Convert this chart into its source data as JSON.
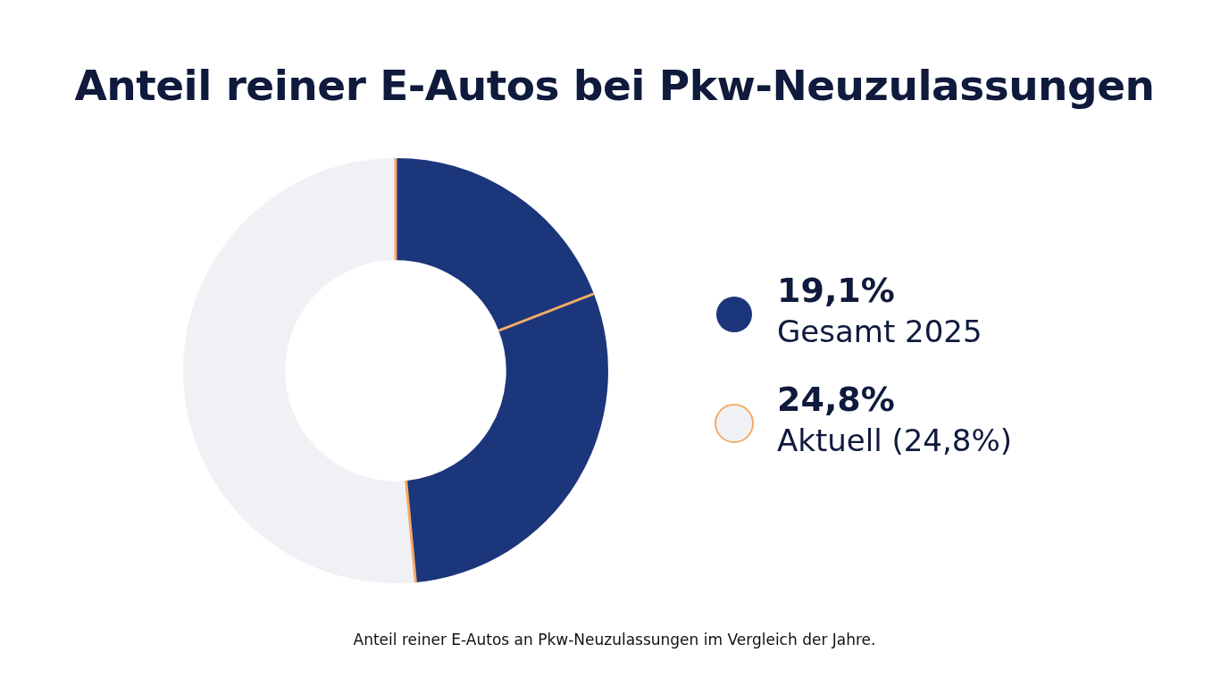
{
  "chart_data": {
    "type": "donut",
    "title": "Anteil reiner E-Autos bei Pkw-Neuzulassungen",
    "categories": [
      "Gesamt 2025",
      null,
      "Aktuell (24,8%)"
    ],
    "values": [
      19.1,
      29.4,
      51.5
    ],
    "colors": [
      "#1c367c",
      "#1c367c",
      "#f0f1f5"
    ],
    "legend": "right",
    "annotations": [
      "19,1%",
      "24,8%",
      "Anteil reiner E-Autos an Pkw-Neuzulassungen im Vergleich der Jahre."
    ]
  }
}
